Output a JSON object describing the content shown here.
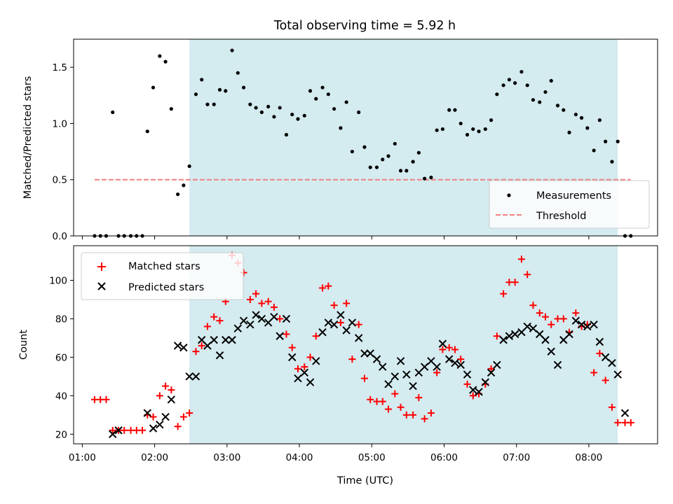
{
  "chart_data": [
    {
      "type": "scatter",
      "title": "Total observing time = 5.92 h",
      "ylabel": "Matched/Predicted stars",
      "ylim": [
        0,
        1.75
      ],
      "yticks": [
        "0.0",
        "0.5",
        "1.0",
        "1.5"
      ],
      "xlim": [
        0.88,
        8.95
      ],
      "shaded_span": [
        2.48,
        8.4
      ],
      "shaded_color": "#d4ebf0",
      "threshold": {
        "name": "Threshold",
        "value": 0.5,
        "x_range": [
          1.17,
          8.58
        ],
        "color": "#f08080"
      },
      "legend": {
        "placement": "lower-right",
        "entries": [
          "Measurements",
          "Threshold"
        ]
      },
      "series": [
        {
          "name": "Measurements",
          "color": "#000000",
          "x": [
            1.17,
            1.25,
            1.33,
            1.42,
            1.5,
            1.58,
            1.67,
            1.75,
            1.83,
            1.9,
            1.98,
            2.07,
            2.15,
            2.23,
            2.32,
            2.4,
            2.48,
            2.57,
            2.65,
            2.73,
            2.82,
            2.9,
            2.98,
            3.07,
            3.15,
            3.23,
            3.32,
            3.4,
            3.48,
            3.57,
            3.65,
            3.73,
            3.82,
            3.9,
            3.98,
            4.07,
            4.15,
            4.23,
            4.32,
            4.4,
            4.48,
            4.57,
            4.65,
            4.73,
            4.82,
            4.9,
            4.98,
            5.07,
            5.15,
            5.23,
            5.32,
            5.4,
            5.48,
            5.57,
            5.65,
            5.73,
            5.82,
            5.9,
            5.98,
            6.07,
            6.15,
            6.23,
            6.32,
            6.4,
            6.48,
            6.57,
            6.65,
            6.73,
            6.82,
            6.9,
            6.98,
            7.07,
            7.15,
            7.23,
            7.32,
            7.4,
            7.48,
            7.57,
            7.65,
            7.73,
            7.82,
            7.9,
            7.98,
            8.07,
            8.15,
            8.23,
            8.32,
            8.4,
            8.5,
            8.58
          ],
          "y": [
            0,
            0,
            0,
            1.1,
            0,
            0,
            0,
            0,
            0,
            0.93,
            1.32,
            1.6,
            1.55,
            1.13,
            0.37,
            0.45,
            0.62,
            1.26,
            1.39,
            1.17,
            1.17,
            1.3,
            1.29,
            1.65,
            1.45,
            1.32,
            1.17,
            1.14,
            1.1,
            1.15,
            1.06,
            1.14,
            0.9,
            1.08,
            1.04,
            1.07,
            1.29,
            1.22,
            1.32,
            1.26,
            1.13,
            0.96,
            1.19,
            0.75,
            1.1,
            0.79,
            0.61,
            0.61,
            0.68,
            0.71,
            0.82,
            0.58,
            0.58,
            0.66,
            0.74,
            0.51,
            0.52,
            0.94,
            0.95,
            1.12,
            1.12,
            1.0,
            0.9,
            0.95,
            0.93,
            0.95,
            1.03,
            1.26,
            1.34,
            1.39,
            1.36,
            1.46,
            1.34,
            1.21,
            1.19,
            1.28,
            1.38,
            1.16,
            1.12,
            0.92,
            1.08,
            1.05,
            0.96,
            0.76,
            1.03,
            0.84,
            0.66,
            0.84,
            0,
            0
          ]
        }
      ]
    },
    {
      "type": "scatter",
      "xlabel": "Time (UTC)",
      "ylabel": "Count",
      "ylim": [
        15,
        118
      ],
      "yticks": [
        "20",
        "40",
        "60",
        "80",
        "100"
      ],
      "xlim": [
        0.88,
        8.95
      ],
      "xticks": [
        "01:00",
        "02:00",
        "03:00",
        "04:00",
        "05:00",
        "06:00",
        "07:00",
        "08:00"
      ],
      "shaded_span": [
        2.48,
        8.4
      ],
      "legend": {
        "placement": "upper-left",
        "entries": [
          "Matched stars",
          "Predicted stars"
        ]
      },
      "series": [
        {
          "name": "Matched stars",
          "marker": "+",
          "color": "#ff0000",
          "x": [
            1.17,
            1.25,
            1.33,
            1.42,
            1.5,
            1.58,
            1.67,
            1.75,
            1.83,
            1.9,
            1.98,
            2.07,
            2.15,
            2.23,
            2.32,
            2.4,
            2.48,
            2.57,
            2.65,
            2.73,
            2.82,
            2.9,
            2.98,
            3.07,
            3.15,
            3.23,
            3.32,
            3.4,
            3.48,
            3.57,
            3.65,
            3.73,
            3.82,
            3.9,
            3.98,
            4.07,
            4.15,
            4.23,
            4.32,
            4.4,
            4.48,
            4.57,
            4.65,
            4.73,
            4.82,
            4.9,
            4.98,
            5.07,
            5.15,
            5.23,
            5.32,
            5.4,
            5.48,
            5.57,
            5.65,
            5.73,
            5.82,
            5.9,
            5.98,
            6.07,
            6.15,
            6.23,
            6.32,
            6.4,
            6.48,
            6.57,
            6.65,
            6.73,
            6.82,
            6.9,
            6.98,
            7.07,
            7.15,
            7.23,
            7.32,
            7.4,
            7.48,
            7.57,
            7.65,
            7.73,
            7.82,
            7.9,
            7.98,
            8.07,
            8.15,
            8.23,
            8.32,
            8.4,
            8.5,
            8.58
          ],
          "y": [
            38,
            38,
            38,
            22,
            22,
            22,
            22,
            22,
            22,
            30,
            29,
            40,
            45,
            43,
            24,
            29,
            31,
            63,
            66,
            76,
            81,
            79,
            89,
            113,
            109,
            104,
            90,
            93,
            88,
            89,
            86,
            80,
            72,
            65,
            54,
            55,
            60,
            71,
            96,
            97,
            87,
            78,
            88,
            59,
            77,
            49,
            38,
            37,
            37,
            33,
            41,
            34,
            30,
            30,
            39,
            28,
            31,
            52,
            64,
            65,
            64,
            59,
            46,
            40,
            41,
            46,
            54,
            71,
            93,
            99,
            99,
            111,
            103,
            87,
            83,
            81,
            77,
            80,
            80,
            73,
            83,
            76,
            77,
            52,
            62,
            48,
            34,
            26,
            26,
            26
          ]
        },
        {
          "name": "Predicted stars",
          "marker": "x",
          "color": "#000000",
          "x": [
            1.42,
            1.5,
            1.9,
            1.98,
            2.07,
            2.15,
            2.23,
            2.32,
            2.4,
            2.48,
            2.57,
            2.65,
            2.73,
            2.82,
            2.9,
            2.98,
            3.07,
            3.15,
            3.23,
            3.32,
            3.4,
            3.48,
            3.57,
            3.65,
            3.73,
            3.82,
            3.9,
            3.98,
            4.07,
            4.15,
            4.23,
            4.32,
            4.4,
            4.48,
            4.57,
            4.65,
            4.73,
            4.82,
            4.9,
            4.98,
            5.07,
            5.15,
            5.23,
            5.32,
            5.4,
            5.48,
            5.57,
            5.65,
            5.73,
            5.82,
            5.9,
            5.98,
            6.07,
            6.15,
            6.23,
            6.32,
            6.4,
            6.48,
            6.57,
            6.65,
            6.73,
            6.82,
            6.9,
            6.98,
            7.07,
            7.15,
            7.23,
            7.32,
            7.4,
            7.48,
            7.57,
            7.65,
            7.73,
            7.82,
            7.9,
            7.98,
            8.07,
            8.15,
            8.23,
            8.32,
            8.4,
            8.5
          ],
          "y": [
            20,
            22,
            31,
            23,
            25,
            29,
            38,
            66,
            65,
            50,
            50,
            69,
            66,
            69,
            61,
            69,
            69,
            75,
            79,
            77,
            82,
            80,
            78,
            81,
            71,
            80,
            60,
            49,
            52,
            47,
            58,
            73,
            78,
            77,
            82,
            74,
            78,
            70,
            62,
            62,
            59,
            55,
            46,
            50,
            58,
            51,
            45,
            52,
            55,
            58,
            55,
            67,
            59,
            57,
            56,
            51,
            43,
            42,
            47,
            52,
            56,
            69,
            71,
            72,
            73,
            76,
            75,
            72,
            69,
            63,
            56,
            69,
            72,
            79,
            77,
            76,
            77,
            68,
            60,
            57,
            51,
            31
          ]
        }
      ]
    }
  ]
}
